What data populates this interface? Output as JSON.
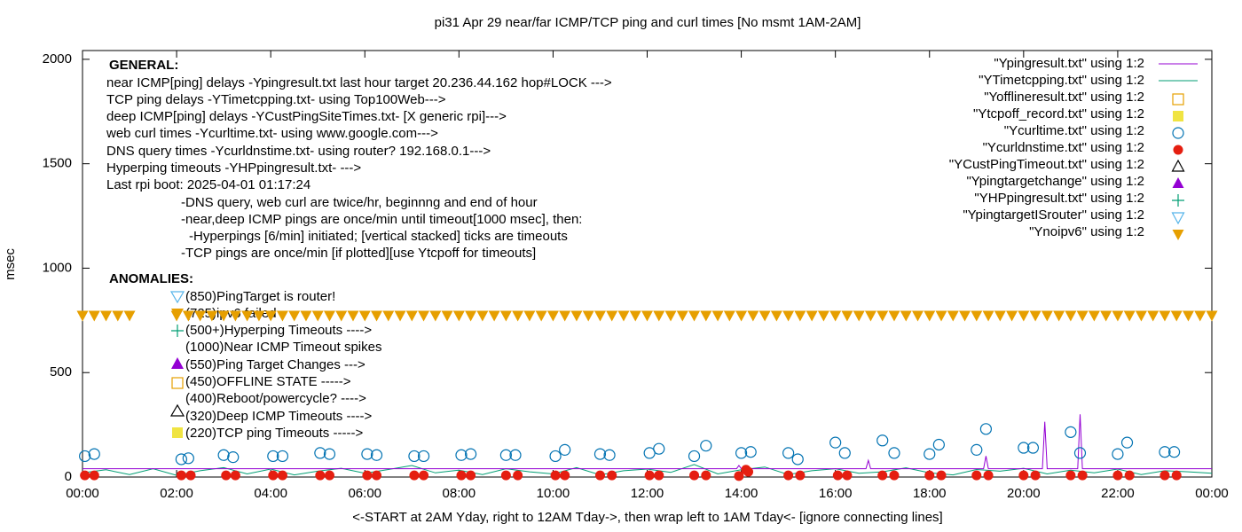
{
  "chart_data": {
    "type": "line",
    "title": "pi31 Apr 29  near/far ICMP/TCP ping and curl times [No msmt 1AM-2AM]",
    "xlabel": "<-START at 2AM Yday, right to 12AM Tday->, then wrap left to 1AM Tday<- [ignore connecting lines]",
    "ylabel": "msec",
    "xlim": [
      0,
      24
    ],
    "ylim": [
      0,
      2042
    ],
    "xticks": [
      {
        "value": 0,
        "label": "00:00"
      },
      {
        "value": 2,
        "label": "02:00"
      },
      {
        "value": 4,
        "label": "04:00"
      },
      {
        "value": 6,
        "label": "06:00"
      },
      {
        "value": 8,
        "label": "08:00"
      },
      {
        "value": 10,
        "label": "10:00"
      },
      {
        "value": 12,
        "label": "12:00"
      },
      {
        "value": 14,
        "label": "14:00"
      },
      {
        "value": 16,
        "label": "16:00"
      },
      {
        "value": 18,
        "label": "18:00"
      },
      {
        "value": 20,
        "label": "20:00"
      },
      {
        "value": 22,
        "label": "22:00"
      },
      {
        "value": 24,
        "label": "00:00"
      }
    ],
    "yticks": [
      0,
      500,
      1000,
      1500,
      2000
    ],
    "grid": false,
    "legend": "top-right",
    "annotations": [
      "GENERAL:",
      "near ICMP[ping] delays -Ypingresult.txt last hour target 20.236.44.162 hop#LOCK --->",
      "TCP ping delays -YTimetcpping.txt- using Top100Web--->",
      "deep ICMP[ping] delays -YCustPingSiteTimes.txt- [X generic rpi]--->",
      "web curl times -Ycurltime.txt- using www.google.com--->",
      "DNS query times -Ycurldnstime.txt- using router? 192.168.0.1--->",
      "Hyperping timeouts -YHPpingresult.txt- --->",
      "Last rpi boot: 2025-04-01 01:17:24",
      "-DNS query, web curl are twice/hr, beginnng and end of hour",
      "-near,deep ICMP pings are once/min until timeout[1000 msec], then:",
      "-Hyperpings [6/min] initiated; [vertical stacked] ticks are timeouts",
      "-TCP pings are once/min [if plotted][use Ytcpoff for timeouts]",
      "ANOMALIES:",
      "(850)PingTarget is router!",
      "(725)ipv6 failed",
      "(500+)Hyperping Timeouts ---->",
      "(1000)Near ICMP Timeout spikes",
      "(550)Ping Target Changes --->",
      "(450)OFFLINE STATE ----->",
      "(400)Reboot/powercycle? ---->",
      "(320)Deep ICMP Timeouts ---->",
      "(220)TCP ping Timeouts ----->"
    ],
    "series": [
      {
        "name": "\"Ypingresult.txt\" using 1:2",
        "color": "#9400d3",
        "marker": "line",
        "x": [
          0,
          1,
          1.9,
          2,
          4,
          6,
          8,
          10,
          12,
          13.9,
          13.95,
          14,
          16,
          16.65,
          16.7,
          16.75,
          18,
          19.15,
          19.2,
          19.25,
          20,
          20.4,
          20.45,
          20.5,
          21,
          21.15,
          21.2,
          21.25,
          21.3,
          22,
          24
        ],
        "values": [
          40,
          40,
          40,
          40,
          40,
          40,
          40,
          40,
          40,
          40,
          55,
          40,
          40,
          40,
          80,
          40,
          40,
          40,
          100,
          40,
          40,
          40,
          265,
          40,
          40,
          40,
          300,
          40,
          40,
          40,
          40
        ]
      },
      {
        "name": "\"YTimetcpping.txt\" using 1:2",
        "color": "#009e73",
        "marker": "line",
        "x": [
          0,
          0.5,
          1,
          1.5,
          2,
          2.5,
          3,
          3.5,
          4,
          4.5,
          5,
          5.5,
          6,
          6.5,
          7,
          7.5,
          8,
          8.5,
          9,
          9.5,
          10,
          10.5,
          11,
          11.5,
          12,
          12.5,
          13,
          13.5,
          14,
          14.5,
          15,
          15.5,
          16,
          16.5,
          17,
          17.5,
          18,
          18.5,
          19,
          19.5,
          20,
          20.5,
          21,
          21.5,
          22,
          22.5,
          23,
          23.5,
          24
        ],
        "values": [
          20,
          35,
          12,
          40,
          8,
          30,
          45,
          15,
          38,
          10,
          28,
          42,
          18,
          36,
          55,
          20,
          33,
          12,
          40,
          25,
          15,
          45,
          10,
          30,
          38,
          22,
          60,
          15,
          35,
          48,
          12,
          30,
          40,
          18,
          25,
          44,
          20,
          10,
          36,
          28,
          42,
          15,
          33,
          20,
          38,
          12,
          30,
          25,
          18
        ]
      },
      {
        "name": "\"Yofflineresult.txt\" using 1:2",
        "color": "#e69f00",
        "marker": "open-square",
        "x": [],
        "values": []
      },
      {
        "name": "\"Ytcpoff_record.txt\" using 1:2",
        "color": "#f0e442",
        "marker": "filled-square",
        "x": [],
        "values": []
      },
      {
        "name": "\"Ycurltime.txt\" using 1:2",
        "color": "#0072b2",
        "marker": "open-circle",
        "x": [
          0.05,
          0.25,
          2.1,
          2.25,
          3.0,
          3.2,
          4.05,
          4.25,
          5.05,
          5.25,
          6.05,
          6.25,
          7.05,
          7.25,
          8.05,
          8.25,
          9.0,
          9.2,
          10.05,
          10.25,
          11.0,
          11.2,
          12.05,
          12.25,
          13.0,
          13.25,
          14.0,
          14.2,
          15.0,
          15.2,
          16.0,
          16.2,
          17.0,
          17.25,
          18.0,
          18.2,
          19.0,
          19.2,
          20.0,
          20.2,
          21.0,
          21.2,
          22.0,
          22.2,
          23.0,
          23.2
        ],
        "values": [
          100,
          110,
          85,
          90,
          105,
          95,
          100,
          100,
          115,
          110,
          110,
          105,
          100,
          100,
          105,
          110,
          105,
          105,
          100,
          130,
          110,
          105,
          115,
          135,
          100,
          150,
          115,
          120,
          115,
          85,
          165,
          115,
          175,
          115,
          110,
          155,
          130,
          230,
          140,
          140,
          215,
          115,
          110,
          165,
          120,
          120
        ]
      },
      {
        "name": "\"Ycurldnstime.txt\" using 1:2",
        "color": "#e51e10",
        "marker": "filled-circle",
        "x": [
          0.05,
          0.25,
          2.1,
          2.3,
          3.05,
          3.25,
          4.05,
          4.25,
          5.05,
          5.25,
          6.05,
          6.25,
          7.05,
          7.25,
          8.05,
          8.25,
          9.0,
          9.25,
          10.05,
          10.25,
          11.0,
          11.25,
          12.05,
          12.25,
          13.0,
          13.25,
          13.95,
          14.1,
          14.15,
          15.0,
          15.25,
          16.05,
          16.25,
          17.0,
          17.25,
          18.0,
          18.25,
          19.0,
          19.25,
          20.0,
          20.25,
          21.0,
          21.25,
          22.0,
          22.25,
          23.0,
          23.25
        ],
        "values": [
          8,
          8,
          8,
          8,
          8,
          8,
          8,
          8,
          8,
          8,
          8,
          8,
          8,
          8,
          8,
          8,
          8,
          8,
          8,
          8,
          8,
          8,
          8,
          8,
          8,
          8,
          5,
          35,
          25,
          8,
          8,
          8,
          8,
          8,
          8,
          8,
          8,
          8,
          8,
          8,
          8,
          8,
          8,
          8,
          8,
          8,
          8
        ]
      },
      {
        "name": "\"YCustPingTimeout.txt\" using 1:2",
        "color": "#000000",
        "marker": "open-triangle",
        "x": [],
        "values": []
      },
      {
        "name": "\"Ypingtargetchange\" using 1:2",
        "color": "#9400d3",
        "marker": "filled-triangle",
        "x": [],
        "values": []
      },
      {
        "name": "\"YHPpingresult.txt\" using 1:2",
        "color": "#009e73",
        "marker": "plus",
        "x": [],
        "values": []
      },
      {
        "name": "\"YpingtargetISrouter\" using 1:2",
        "color": "#56b4e9",
        "marker": "open-down-triangle",
        "x": [],
        "values": []
      },
      {
        "name": "\"Ynoipv6\" using 1:2",
        "color": "#e69f00",
        "marker": "filled-down-triangle",
        "x": [
          0,
          0.25,
          0.5,
          0.75,
          1,
          2,
          2.25,
          2.5,
          2.75,
          3,
          3.25,
          3.5,
          3.75,
          4,
          4.25,
          4.5,
          4.75,
          5,
          5.25,
          5.5,
          5.75,
          6,
          6.25,
          6.5,
          6.75,
          7,
          7.25,
          7.5,
          7.75,
          8,
          8.25,
          8.5,
          8.75,
          9,
          9.25,
          9.5,
          9.75,
          10,
          10.25,
          10.5,
          10.75,
          11,
          11.25,
          11.5,
          11.75,
          12,
          12.25,
          12.5,
          12.75,
          13,
          13.25,
          13.5,
          13.75,
          14,
          14.25,
          14.5,
          14.75,
          15,
          15.25,
          15.5,
          15.75,
          16,
          16.25,
          16.5,
          16.75,
          17,
          17.25,
          17.5,
          17.75,
          18,
          18.25,
          18.5,
          18.75,
          19,
          19.25,
          19.5,
          19.75,
          20,
          20.25,
          20.5,
          20.75,
          21,
          21.25,
          21.5,
          21.75,
          22,
          22.25,
          22.5,
          22.75,
          23,
          23.25,
          23.5,
          23.75,
          24
        ],
        "values": [
          775,
          775,
          775,
          775,
          775,
          775,
          775,
          775,
          775,
          775,
          775,
          775,
          775,
          775,
          775,
          775,
          775,
          775,
          775,
          775,
          775,
          775,
          775,
          775,
          775,
          775,
          775,
          775,
          775,
          775,
          775,
          775,
          775,
          775,
          775,
          775,
          775,
          775,
          775,
          775,
          775,
          775,
          775,
          775,
          775,
          775,
          775,
          775,
          775,
          775,
          775,
          775,
          775,
          775,
          775,
          775,
          775,
          775,
          775,
          775,
          775,
          775,
          775,
          775,
          775,
          775,
          775,
          775,
          775,
          775,
          775,
          775,
          775,
          775,
          775,
          775,
          775,
          775,
          775,
          775,
          775,
          775,
          775,
          775,
          775,
          775,
          775,
          775,
          775,
          775,
          775,
          775,
          775,
          775
        ]
      }
    ]
  }
}
